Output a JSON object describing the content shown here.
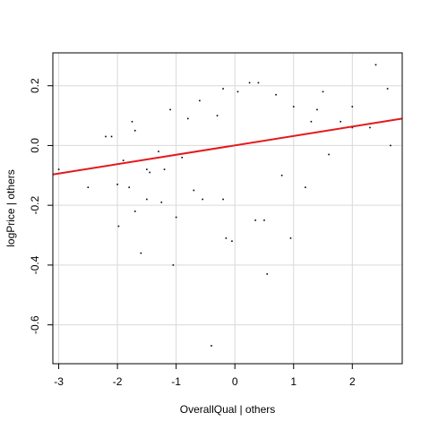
{
  "chart_data": {
    "type": "scatter",
    "title": "",
    "xlabel": "OverallQual | others",
    "ylabel": "logPrice | others",
    "xlim": [
      -3.1,
      2.85
    ],
    "ylim": [
      -0.73,
      0.31
    ],
    "xticks": [
      -3,
      -2,
      -1,
      0,
      1,
      2
    ],
    "yticks": [
      -0.6,
      -0.4,
      -0.2,
      0.0,
      0.2
    ],
    "xtick_labels": [
      "-3",
      "-2",
      "-1",
      "0",
      "1",
      "2"
    ],
    "ytick_labels": [
      "-0.6",
      "-0.4",
      "-0.2",
      "0.0",
      "0.2"
    ],
    "grid": true,
    "point_color": "#000000",
    "series": [
      {
        "points": [
          [
            -3.0,
            -0.08
          ],
          [
            -2.5,
            -0.14
          ],
          [
            -2.2,
            0.03
          ],
          [
            -2.1,
            0.03
          ],
          [
            -2.0,
            -0.13
          ],
          [
            -1.98,
            -0.27
          ],
          [
            -1.9,
            -0.05
          ],
          [
            -1.8,
            -0.14
          ],
          [
            -1.75,
            0.08
          ],
          [
            -1.7,
            -0.22
          ],
          [
            -1.6,
            -0.36
          ],
          [
            -1.5,
            -0.18
          ],
          [
            -1.5,
            -0.08
          ],
          [
            -1.45,
            -0.09
          ],
          [
            -1.3,
            -0.02
          ],
          [
            -1.25,
            -0.19
          ],
          [
            -1.2,
            -0.08
          ],
          [
            -1.1,
            0.12
          ],
          [
            -1.05,
            -0.4
          ],
          [
            -1.0,
            -0.24
          ],
          [
            -0.9,
            -0.04
          ],
          [
            -0.8,
            0.09
          ],
          [
            -0.7,
            -0.15
          ],
          [
            -0.55,
            -0.18
          ],
          [
            -0.4,
            -0.67
          ],
          [
            -0.3,
            0.1
          ],
          [
            -0.2,
            0.19
          ],
          [
            -0.2,
            -0.18
          ],
          [
            -0.15,
            -0.31
          ],
          [
            -0.05,
            -0.32
          ],
          [
            0.05,
            0.18
          ],
          [
            0.25,
            0.21
          ],
          [
            0.4,
            0.21
          ],
          [
            0.35,
            -0.25
          ],
          [
            0.5,
            -0.25
          ],
          [
            0.55,
            -0.43
          ],
          [
            0.8,
            -0.1
          ],
          [
            0.95,
            -0.31
          ],
          [
            1.0,
            0.13
          ],
          [
            1.2,
            -0.14
          ],
          [
            1.4,
            0.12
          ],
          [
            1.5,
            0.18
          ],
          [
            1.6,
            -0.03
          ],
          [
            1.8,
            0.08
          ],
          [
            2.0,
            0.13
          ],
          [
            2.0,
            0.06
          ],
          [
            2.3,
            0.06
          ],
          [
            2.4,
            0.27
          ],
          [
            2.6,
            0.19
          ],
          [
            2.65,
            0.0
          ],
          [
            -1.7,
            0.05
          ],
          [
            -0.6,
            0.15
          ],
          [
            0.7,
            0.17
          ],
          [
            1.3,
            0.08
          ]
        ]
      }
    ],
    "regression_line": {
      "x": [
        -3.1,
        2.85
      ],
      "y": [
        -0.097,
        0.09
      ],
      "color": "#e31a1c"
    }
  }
}
